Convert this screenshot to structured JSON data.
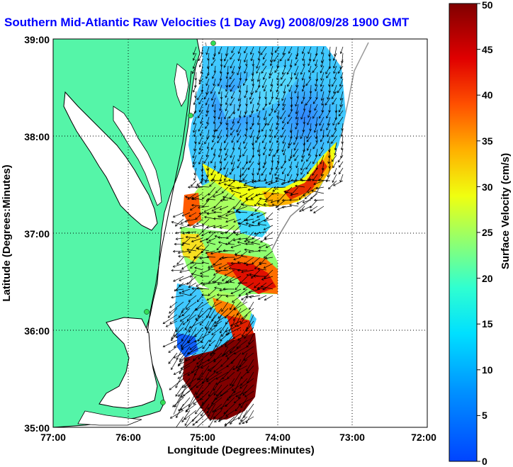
{
  "title": "Southern Mid-Atlantic Raw Velocities (1 Day Avg) 2008/09/28 1900 GMT",
  "map": {
    "xlabel": "Longitude (Degrees:Minutes)",
    "ylabel": "Latitude (Degrees:Minutes)",
    "lon_ticks": [
      "77:00",
      "76:00",
      "75:00",
      "74:00",
      "73:00",
      "72:00"
    ],
    "lat_ticks": [
      "39:00",
      "38:00",
      "37:00",
      "36:00",
      "35:00"
    ],
    "xlim": [
      -77,
      -72
    ],
    "ylim": [
      35,
      39
    ],
    "grid": "dotted",
    "land_color": "#55f5a8",
    "station_color": "#33dd55"
  },
  "colorbar": {
    "label": "Surface Velocity (cm/s)",
    "ticks": [
      "0",
      "5",
      "10",
      "15",
      "20",
      "25",
      "30",
      "35",
      "40",
      "45",
      "50"
    ],
    "range": [
      0,
      50
    ]
  }
}
